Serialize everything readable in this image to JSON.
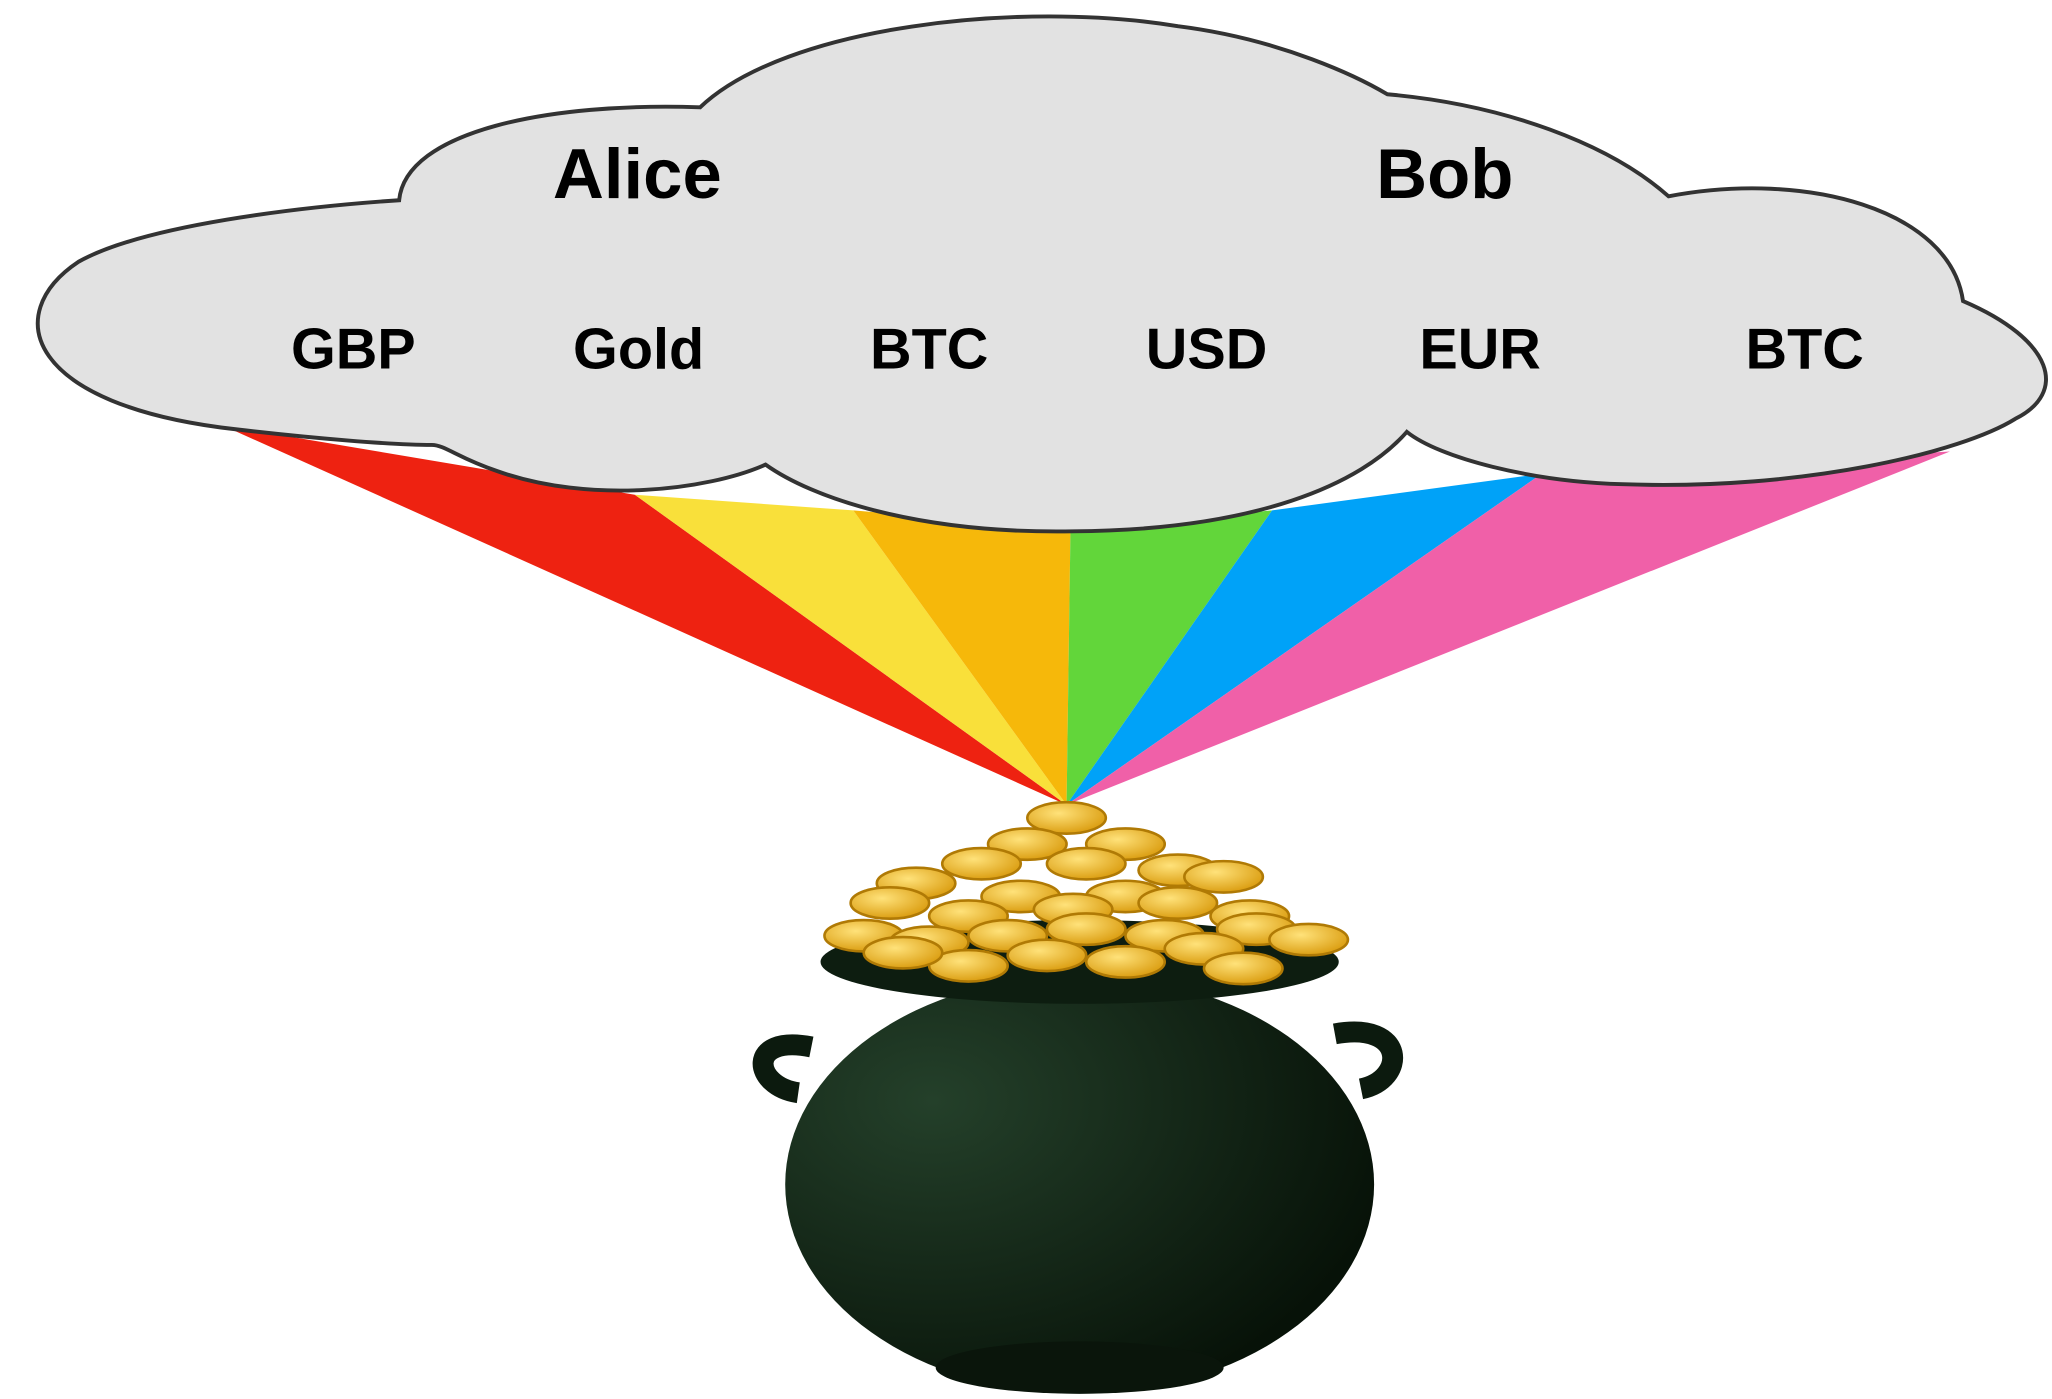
{
  "cloud": {
    "people": [
      "Alice",
      "Bob"
    ],
    "assets": [
      "GBP",
      "Gold",
      "BTC",
      "USD",
      "EUR",
      "BTC"
    ]
  }
}
